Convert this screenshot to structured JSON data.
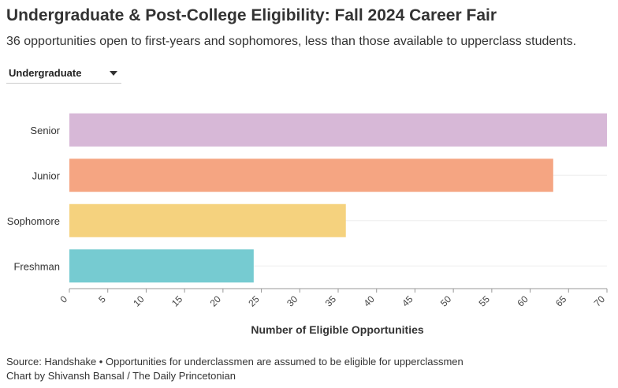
{
  "header": {
    "title": "Undergraduate & Post-College Eligibility: Fall 2024 Career Fair",
    "subtitle": "36 opportunities open to first-years and sophomores, less than those available to upperclass students."
  },
  "filter": {
    "selected": "Undergraduate"
  },
  "chart_data": {
    "type": "bar",
    "orientation": "horizontal",
    "categories": [
      "Senior",
      "Junior",
      "Sophomore",
      "Freshman"
    ],
    "values": [
      70,
      63,
      36,
      24
    ],
    "colors": [
      "#d7b8d7",
      "#f5a582",
      "#f5d27e",
      "#76cbd1"
    ],
    "xlabel": "Number of Eligible Opportunities",
    "xlim": [
      0,
      70
    ],
    "xticks": [
      "0",
      "5",
      "10",
      "15",
      "20",
      "25",
      "30",
      "35",
      "40",
      "45",
      "50",
      "55",
      "60",
      "65",
      "70"
    ],
    "grid": true
  },
  "footer": {
    "source": "Source: Handshake • Opportunities for underclassmen are assumed to be eligible for upperclassmen",
    "credit": "Chart by Shivansh Bansal / The Daily Princetonian"
  }
}
